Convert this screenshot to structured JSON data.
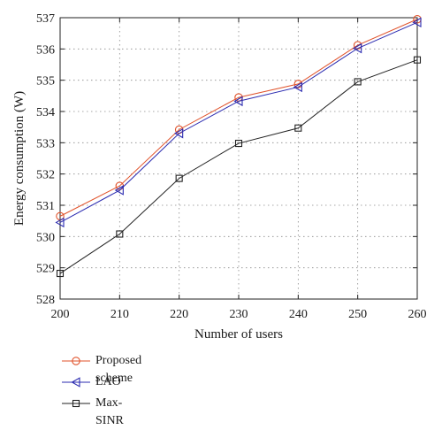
{
  "chart_data": {
    "type": "line",
    "title": "",
    "xlabel": "Number of users",
    "ylabel": "Energy consumption (W)",
    "x": [
      200,
      210,
      220,
      230,
      240,
      250,
      260
    ],
    "xlim": [
      200,
      260
    ],
    "ylim": [
      528,
      537
    ],
    "xticks": [
      "200",
      "210",
      "220",
      "230",
      "240",
      "250",
      "260"
    ],
    "yticks": [
      "528",
      "529",
      "530",
      "531",
      "532",
      "533",
      "534",
      "535",
      "536",
      "537"
    ],
    "grid": true,
    "legend_position": "below",
    "series": [
      {
        "name": "Proposed scheme",
        "marker": "circle",
        "color": "#e0522a",
        "values": [
          530.65,
          531.62,
          533.42,
          534.45,
          534.88,
          536.12,
          536.95
        ]
      },
      {
        "name": "LAO",
        "marker": "triangle-left",
        "color": "#2b2bb0",
        "values": [
          530.45,
          531.48,
          533.3,
          534.33,
          534.78,
          536.02,
          536.85
        ]
      },
      {
        "name": "Max-SINR",
        "marker": "square",
        "color": "#222222",
        "values": [
          528.82,
          530.08,
          531.86,
          532.98,
          533.47,
          534.95,
          535.65
        ]
      }
    ]
  }
}
